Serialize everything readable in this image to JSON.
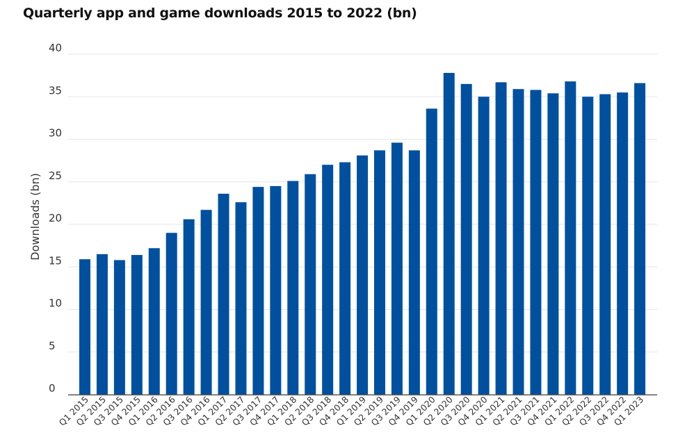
{
  "chart_data": {
    "type": "bar",
    "title": "Quarterly app and game downloads 2015 to 2022 (bn)",
    "xlabel": "",
    "ylabel": "Downloads (bn)",
    "ylim": [
      0,
      40
    ],
    "yticks": [
      0,
      5,
      10,
      15,
      20,
      25,
      30,
      35,
      40
    ],
    "grid": true,
    "bar_color": "#0050a0",
    "categories": [
      "Q1 2015",
      "Q2 2015",
      "Q3 2015",
      "Q4 2015",
      "Q1 2016",
      "Q2 2016",
      "Q3 2016",
      "Q4 2016",
      "Q1 2017",
      "Q2 2017",
      "Q3 2017",
      "Q4 2017",
      "Q1 2018",
      "Q2 2018",
      "Q3 2018",
      "Q4 2018",
      "Q1 2019",
      "Q2 2019",
      "Q3 2019",
      "Q4 2019",
      "Q1 2020",
      "Q2 2020",
      "Q3 2020",
      "Q4 2020",
      "Q1 2021",
      "Q2 2021",
      "Q3 2021",
      "Q4 2021",
      "Q1 2022",
      "Q2 2022",
      "Q3 2022",
      "Q4 2022",
      "Q1 2023"
    ],
    "values": [
      15.9,
      16.5,
      15.8,
      16.4,
      17.2,
      19.0,
      20.6,
      21.7,
      23.6,
      22.6,
      24.4,
      24.5,
      25.1,
      25.9,
      27.0,
      27.3,
      28.1,
      28.7,
      29.6,
      28.7,
      33.6,
      37.8,
      36.5,
      35.0,
      36.7,
      35.9,
      35.8,
      35.4,
      36.8,
      35.0,
      35.3,
      35.5,
      36.6
    ]
  }
}
